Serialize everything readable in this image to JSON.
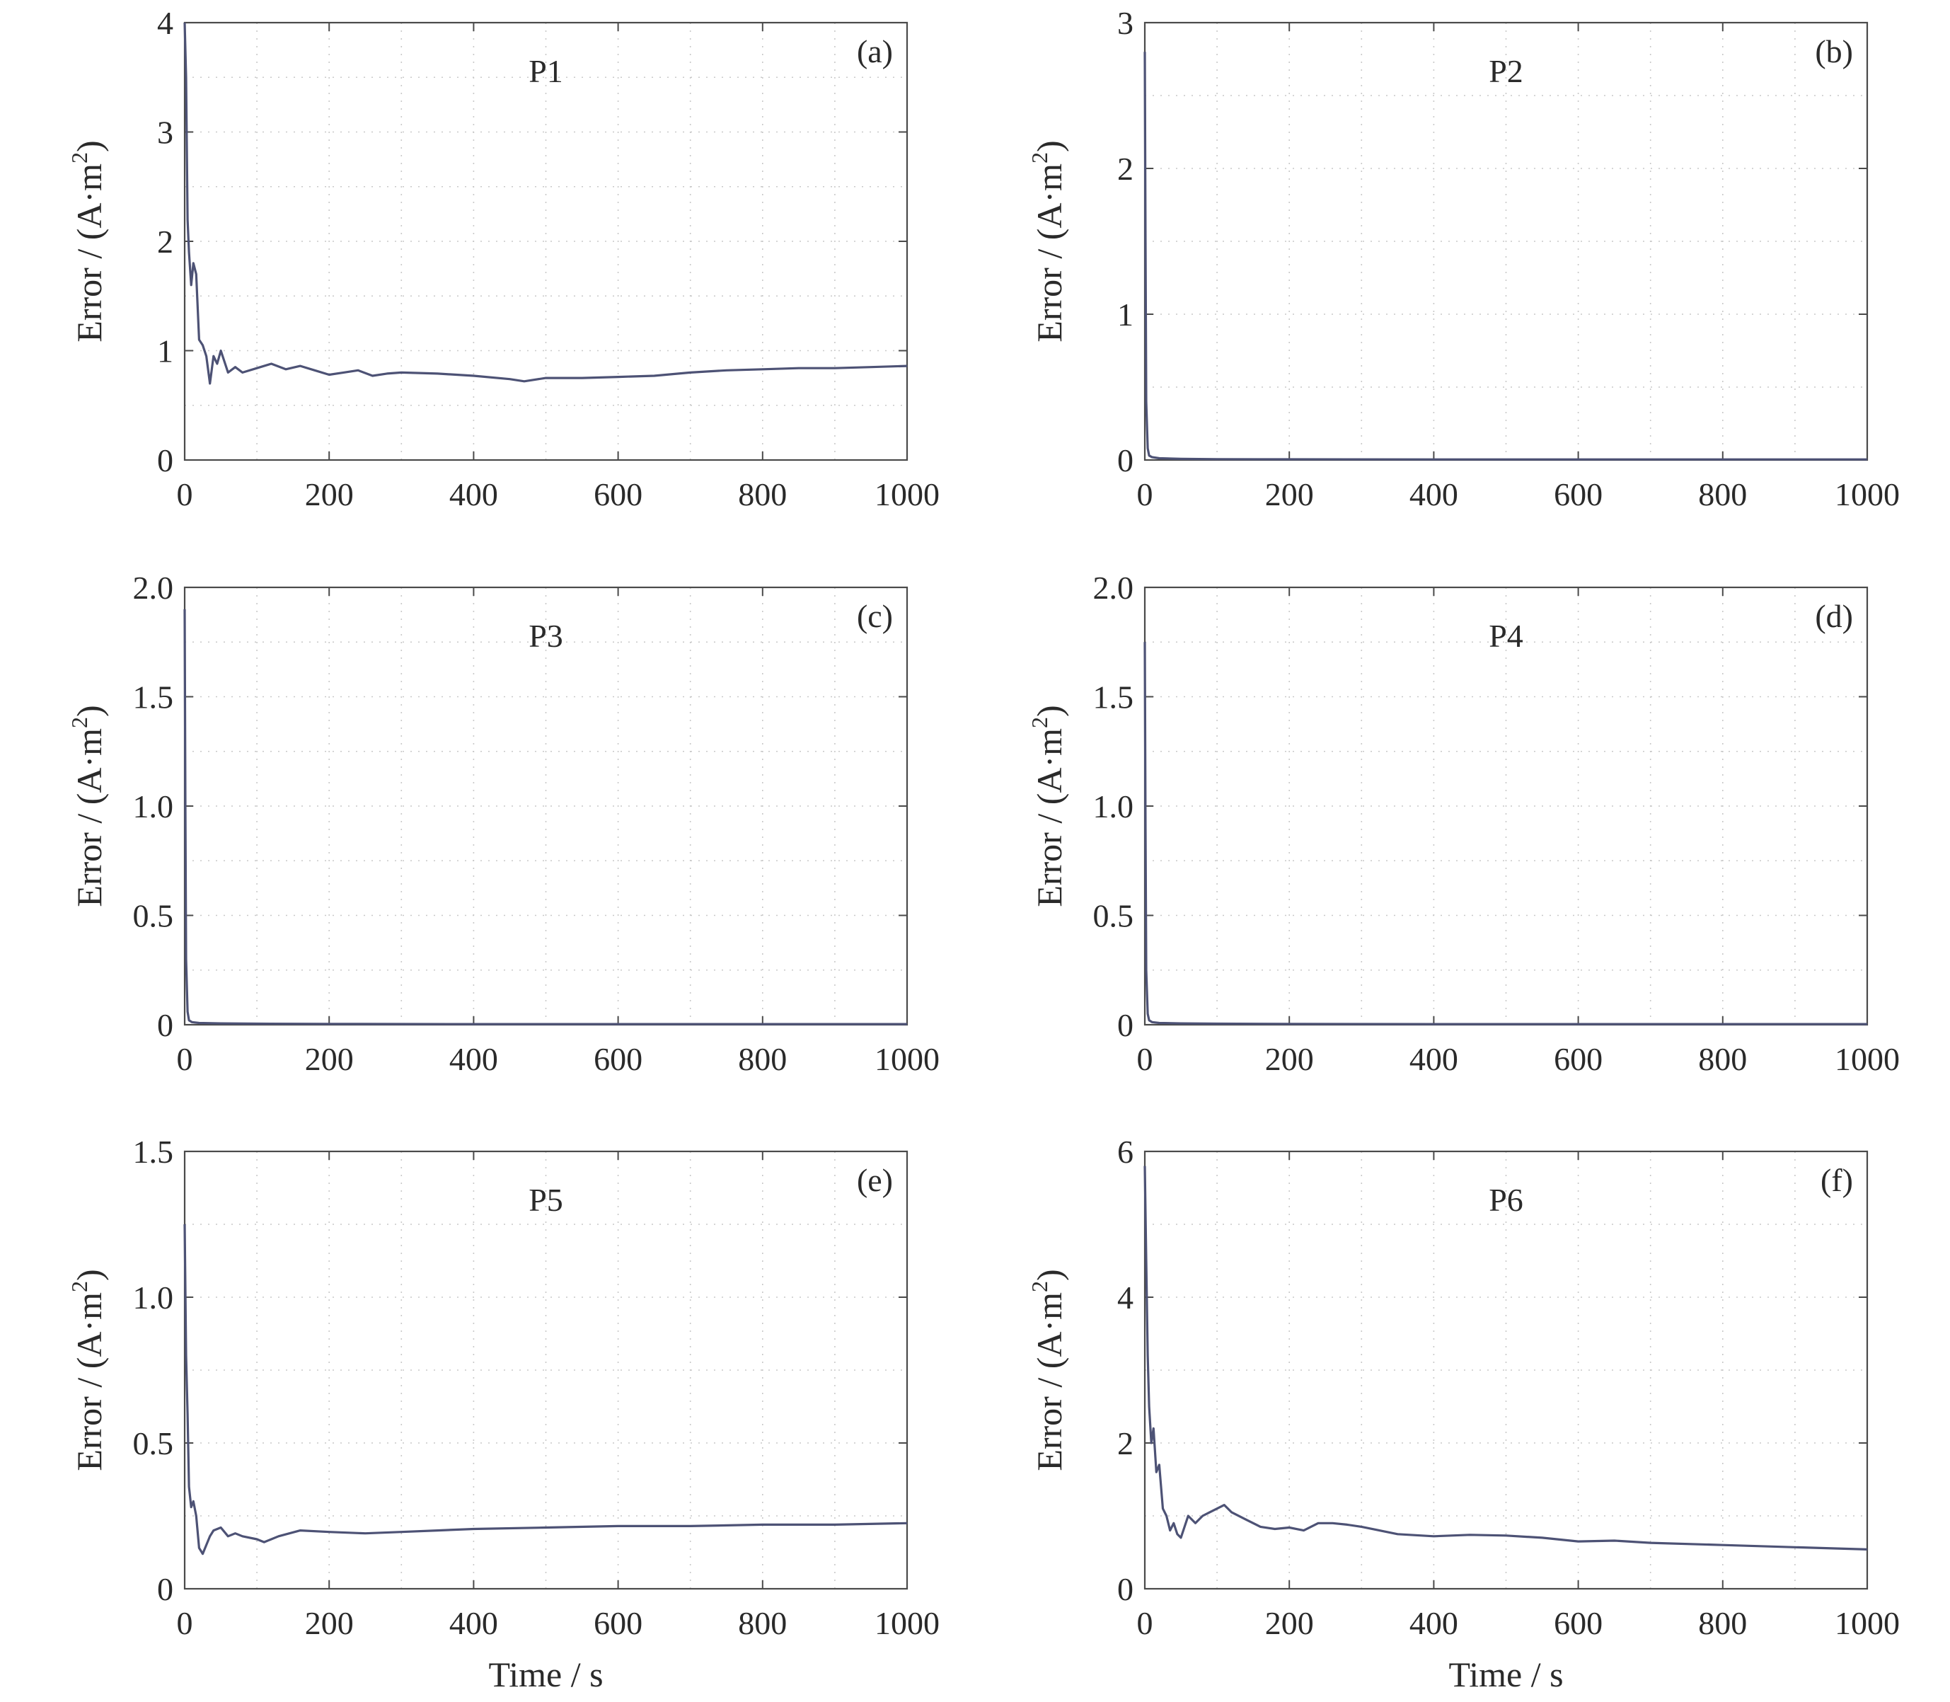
{
  "chart_data": [
    {
      "type": "line",
      "panel_tag": "(a)",
      "title": "P1",
      "xlabel": "Time / s",
      "ylabel": "Error / (A·m2)",
      "xlim": [
        0,
        1000
      ],
      "ylim": [
        0,
        4
      ],
      "xticks": [
        "0",
        "200",
        "400",
        "600",
        "800",
        "1000"
      ],
      "yticks": [
        "0",
        "1",
        "2",
        "3",
        "4"
      ],
      "ytick_values": [
        0,
        1,
        2,
        3,
        4
      ],
      "grid": true,
      "series": [
        {
          "x": [
            0,
            2,
            4,
            6,
            9,
            12,
            16,
            20,
            25,
            30,
            35,
            40,
            45,
            50,
            60,
            70,
            80,
            100,
            120,
            140,
            160,
            180,
            200,
            220,
            240,
            260,
            280,
            300,
            350,
            400,
            450,
            470,
            500,
            550,
            600,
            650,
            700,
            750,
            800,
            850,
            900,
            950,
            1000
          ],
          "y": [
            4.0,
            3.5,
            2.2,
            1.9,
            1.6,
            1.8,
            1.7,
            1.1,
            1.05,
            0.95,
            0.7,
            0.95,
            0.88,
            1.0,
            0.8,
            0.85,
            0.8,
            0.84,
            0.88,
            0.83,
            0.86,
            0.82,
            0.78,
            0.8,
            0.82,
            0.77,
            0.79,
            0.8,
            0.79,
            0.77,
            0.74,
            0.72,
            0.75,
            0.75,
            0.76,
            0.77,
            0.8,
            0.82,
            0.83,
            0.84,
            0.84,
            0.85,
            0.86
          ]
        }
      ]
    },
    {
      "type": "line",
      "panel_tag": "(b)",
      "title": "P2",
      "xlabel": "Time / s",
      "ylabel": "Error / (A·m2)",
      "xlim": [
        0,
        1000
      ],
      "ylim": [
        0,
        3
      ],
      "xticks": [
        "0",
        "200",
        "400",
        "600",
        "800",
        "1000"
      ],
      "yticks": [
        "0",
        "1",
        "2",
        "3"
      ],
      "ytick_values": [
        0,
        1,
        2,
        3
      ],
      "grid": true,
      "series": [
        {
          "x": [
            0,
            1,
            2,
            4,
            6,
            10,
            20,
            50,
            100,
            200,
            400,
            600,
            800,
            1000
          ],
          "y": [
            2.8,
            1.5,
            0.4,
            0.08,
            0.03,
            0.02,
            0.012,
            0.008,
            0.006,
            0.005,
            0.004,
            0.004,
            0.004,
            0.004
          ]
        }
      ]
    },
    {
      "type": "line",
      "panel_tag": "(c)",
      "title": "P3",
      "xlabel": "Time / s",
      "ylabel": "Error / (A·m2)",
      "xlim": [
        0,
        1000
      ],
      "ylim": [
        0,
        2
      ],
      "xticks": [
        "0",
        "200",
        "400",
        "600",
        "800",
        "1000"
      ],
      "yticks": [
        "0",
        "0.5",
        "1.0",
        "1.5",
        "2.0"
      ],
      "ytick_values": [
        0,
        0.5,
        1.0,
        1.5,
        2.0
      ],
      "grid": true,
      "series": [
        {
          "x": [
            0,
            1,
            2,
            4,
            6,
            10,
            20,
            50,
            100,
            200,
            400,
            600,
            800,
            1000
          ],
          "y": [
            1.9,
            1.0,
            0.3,
            0.06,
            0.02,
            0.012,
            0.008,
            0.006,
            0.005,
            0.004,
            0.003,
            0.003,
            0.003,
            0.003
          ]
        }
      ]
    },
    {
      "type": "line",
      "panel_tag": "(d)",
      "title": "P4",
      "xlabel": "Time / s",
      "ylabel": "Error / (A·m2)",
      "xlim": [
        0,
        1000
      ],
      "ylim": [
        0,
        2
      ],
      "xticks": [
        "0",
        "200",
        "400",
        "600",
        "800",
        "1000"
      ],
      "yticks": [
        "0",
        "0.5",
        "1.0",
        "1.5",
        "2.0"
      ],
      "ytick_values": [
        0,
        0.5,
        1.0,
        1.5,
        2.0
      ],
      "grid": true,
      "series": [
        {
          "x": [
            0,
            1,
            2,
            4,
            6,
            10,
            20,
            50,
            100,
            200,
            400,
            600,
            800,
            1000
          ],
          "y": [
            1.75,
            0.9,
            0.25,
            0.05,
            0.02,
            0.012,
            0.008,
            0.006,
            0.005,
            0.004,
            0.003,
            0.003,
            0.003,
            0.003
          ]
        }
      ]
    },
    {
      "type": "line",
      "panel_tag": "(e)",
      "title": "P5",
      "xlabel": "Time / s",
      "ylabel": "Error / (A·m2)",
      "xlim": [
        0,
        1000
      ],
      "ylim": [
        0,
        1.5
      ],
      "xticks": [
        "0",
        "200",
        "400",
        "600",
        "800",
        "1000"
      ],
      "yticks": [
        "0",
        "0.5",
        "1.0",
        "1.5"
      ],
      "ytick_values": [
        0,
        0.5,
        1.0,
        1.5
      ],
      "grid": true,
      "series": [
        {
          "x": [
            0,
            2,
            4,
            6,
            9,
            12,
            16,
            20,
            25,
            30,
            35,
            40,
            50,
            60,
            70,
            80,
            100,
            110,
            130,
            160,
            200,
            250,
            300,
            350,
            400,
            500,
            600,
            700,
            800,
            900,
            1000
          ],
          "y": [
            1.25,
            0.8,
            0.6,
            0.35,
            0.28,
            0.3,
            0.25,
            0.14,
            0.12,
            0.15,
            0.18,
            0.2,
            0.21,
            0.18,
            0.19,
            0.18,
            0.17,
            0.16,
            0.18,
            0.2,
            0.195,
            0.19,
            0.195,
            0.2,
            0.205,
            0.21,
            0.215,
            0.215,
            0.22,
            0.22,
            0.225
          ]
        }
      ]
    },
    {
      "type": "line",
      "panel_tag": "(f)",
      "title": "P6",
      "xlabel": "Time / s",
      "ylabel": "Error / (A·m2)",
      "xlim": [
        0,
        1000
      ],
      "ylim": [
        0,
        6
      ],
      "xticks": [
        "0",
        "200",
        "400",
        "600",
        "800",
        "1000"
      ],
      "yticks": [
        "0",
        "2",
        "4",
        "6"
      ],
      "ytick_values": [
        0,
        2,
        4,
        6
      ],
      "grid": true,
      "series": [
        {
          "x": [
            0,
            2,
            4,
            6,
            9,
            12,
            16,
            20,
            25,
            30,
            35,
            40,
            45,
            50,
            60,
            70,
            80,
            90,
            100,
            110,
            120,
            140,
            160,
            180,
            200,
            220,
            240,
            260,
            280,
            300,
            350,
            400,
            450,
            500,
            550,
            600,
            650,
            700,
            800,
            900,
            1000
          ],
          "y": [
            5.8,
            4.5,
            3.2,
            2.5,
            2.0,
            2.2,
            1.6,
            1.7,
            1.1,
            1.0,
            0.8,
            0.9,
            0.75,
            0.7,
            1.0,
            0.9,
            1.0,
            1.05,
            1.1,
            1.15,
            1.05,
            0.95,
            0.85,
            0.82,
            0.84,
            0.8,
            0.9,
            0.9,
            0.88,
            0.85,
            0.75,
            0.72,
            0.74,
            0.73,
            0.7,
            0.65,
            0.66,
            0.63,
            0.6,
            0.57,
            0.54
          ]
        }
      ]
    }
  ]
}
